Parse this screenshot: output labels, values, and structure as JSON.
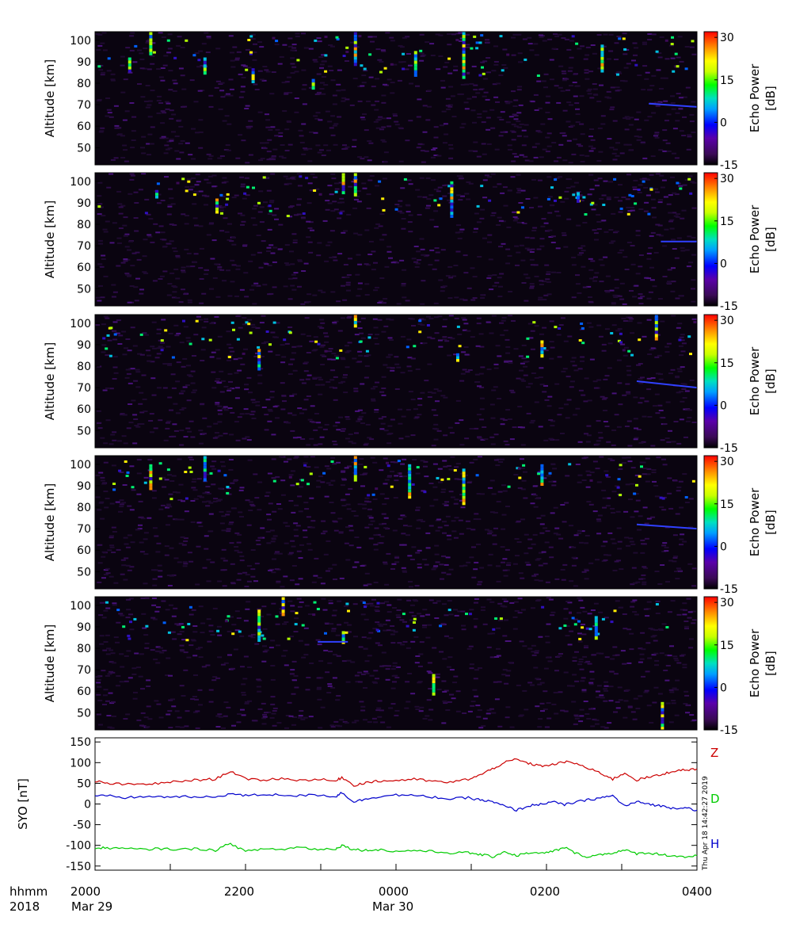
{
  "chart_data": [
    {
      "type": "heatmap",
      "ylabel": "Altitude [km]",
      "ylim": [
        42,
        104
      ],
      "yticks": [
        50,
        60,
        70,
        80,
        90,
        100
      ],
      "colorbar": {
        "label_line1": "Echo Power",
        "label_line2": "[dB]",
        "ticks": [
          30,
          15,
          0,
          -15
        ],
        "range": [
          -15,
          32
        ]
      },
      "streaks": [
        [
          0.055,
          85,
          92
        ],
        [
          0.09,
          93,
          104
        ],
        [
          0.18,
          84,
          92
        ],
        [
          0.26,
          80,
          87
        ],
        [
          0.36,
          77,
          82
        ],
        [
          0.43,
          88,
          104
        ],
        [
          0.53,
          83,
          95
        ],
        [
          0.61,
          82,
          104
        ],
        [
          0.84,
          85,
          98
        ]
      ],
      "meteor_trail": {
        "x": [
          0.92,
          1.0
        ],
        "y": [
          70.5,
          69
        ]
      }
    },
    {
      "type": "heatmap",
      "ylabel": "Altitude [km]",
      "ylim": [
        42,
        104
      ],
      "yticks": [
        50,
        60,
        70,
        80,
        90,
        100
      ],
      "colorbar": {
        "label_line1": "Echo Power",
        "label_line2": "[dB]",
        "ticks": [
          30,
          15,
          0,
          -15
        ],
        "range": [
          -15,
          32
        ]
      },
      "streaks": [
        [
          0.2,
          85,
          92
        ],
        [
          0.41,
          94,
          104
        ],
        [
          0.43,
          93,
          104
        ],
        [
          0.59,
          83,
          100
        ],
        [
          0.8,
          90,
          95
        ],
        [
          0.1,
          92,
          96
        ]
      ],
      "meteor_trail": {
        "x": [
          0.94,
          1.0
        ],
        "y": [
          72,
          72
        ]
      }
    },
    {
      "type": "heatmap",
      "ylabel": "Altitude [km]",
      "ylim": [
        42,
        104
      ],
      "yticks": [
        50,
        60,
        70,
        80,
        90,
        100
      ],
      "colorbar": {
        "label_line1": "Echo Power",
        "label_line2": "[dB]",
        "ticks": [
          30,
          15,
          0,
          -15
        ],
        "range": [
          -15,
          32
        ]
      },
      "streaks": [
        [
          0.27,
          78,
          88
        ],
        [
          0.43,
          98,
          104
        ],
        [
          0.6,
          82,
          86
        ],
        [
          0.74,
          84,
          92
        ],
        [
          0.93,
          92,
          104
        ]
      ],
      "meteor_trail": {
        "x": [
          0.9,
          1.0
        ],
        "y": [
          73,
          70
        ]
      }
    },
    {
      "type": "heatmap",
      "ylabel": "Altitude [km]",
      "ylim": [
        42,
        104
      ],
      "yticks": [
        50,
        60,
        70,
        80,
        90,
        100
      ],
      "colorbar": {
        "label_line1": "Echo Power",
        "label_line2": "[dB]",
        "ticks": [
          30,
          15,
          0,
          -15
        ],
        "range": [
          -15,
          32
        ]
      },
      "streaks": [
        [
          0.09,
          88,
          100
        ],
        [
          0.18,
          92,
          104
        ],
        [
          0.43,
          92,
          104
        ],
        [
          0.52,
          84,
          100
        ],
        [
          0.61,
          81,
          98
        ],
        [
          0.74,
          90,
          100
        ]
      ],
      "meteor_trail": {
        "x": [
          0.9,
          1.0
        ],
        "y": [
          72,
          70
        ]
      }
    },
    {
      "type": "heatmap",
      "ylabel": "Altitude [km]",
      "ylim": [
        42,
        104
      ],
      "yticks": [
        50,
        60,
        70,
        80,
        90,
        100
      ],
      "colorbar": {
        "label_line1": "Echo Power",
        "label_line2": "[dB]",
        "ticks": [
          30,
          15,
          0,
          -15
        ],
        "range": [
          -15,
          32
        ]
      },
      "streaks": [
        [
          0.27,
          83,
          98
        ],
        [
          0.31,
          95,
          104
        ],
        [
          0.41,
          82,
          88
        ],
        [
          0.83,
          84,
          95
        ],
        [
          0.94,
          42,
          55
        ],
        [
          0.56,
          58,
          68
        ]
      ],
      "meteor_trail": {
        "x": [
          0.37,
          0.42
        ],
        "y": [
          83,
          83
        ]
      }
    },
    {
      "type": "line",
      "ylabel": "SYO [nT]",
      "ylim": [
        -160,
        160
      ],
      "yticks": [
        150,
        100,
        50,
        0,
        -50,
        -100,
        -150
      ],
      "x": [
        0,
        0.02,
        0.05,
        0.08,
        0.11,
        0.14,
        0.17,
        0.2,
        0.225,
        0.25,
        0.28,
        0.31,
        0.34,
        0.37,
        0.4,
        0.41,
        0.43,
        0.45,
        0.47,
        0.5,
        0.53,
        0.56,
        0.59,
        0.62,
        0.64,
        0.66,
        0.68,
        0.7,
        0.72,
        0.74,
        0.76,
        0.78,
        0.8,
        0.82,
        0.84,
        0.86,
        0.88,
        0.9,
        0.92,
        0.94,
        0.96,
        0.98,
        1.0
      ],
      "series": [
        {
          "name": "Z",
          "color": "#cc0000",
          "values": [
            55,
            50,
            47,
            48,
            50,
            55,
            58,
            60,
            80,
            60,
            58,
            62,
            57,
            60,
            55,
            65,
            45,
            52,
            55,
            57,
            60,
            55,
            52,
            60,
            70,
            85,
            100,
            108,
            98,
            92,
            95,
            102,
            98,
            85,
            75,
            60,
            75,
            58,
            65,
            70,
            80,
            82,
            85
          ]
        },
        {
          "name": "D",
          "color": "#00cc00",
          "values": [
            -108,
            -106,
            -108,
            -110,
            -108,
            -110,
            -108,
            -112,
            -95,
            -115,
            -108,
            -110,
            -104,
            -110,
            -108,
            -100,
            -110,
            -112,
            -110,
            -115,
            -112,
            -115,
            -118,
            -118,
            -122,
            -128,
            -115,
            -125,
            -118,
            -120,
            -115,
            -105,
            -120,
            -128,
            -122,
            -118,
            -112,
            -120,
            -118,
            -122,
            -125,
            -128,
            -125
          ]
        },
        {
          "name": "H",
          "color": "#0000cc",
          "values": [
            18,
            20,
            15,
            18,
            17,
            18,
            16,
            17,
            25,
            20,
            23,
            22,
            20,
            22,
            18,
            28,
            5,
            12,
            18,
            22,
            20,
            17,
            12,
            15,
            10,
            5,
            -5,
            -15,
            -5,
            0,
            5,
            -2,
            5,
            10,
            15,
            20,
            -5,
            5,
            0,
            -5,
            -10,
            -8,
            -15
          ]
        }
      ]
    }
  ],
  "time_axis": {
    "row1_label": "hhmm",
    "row2_label": "2018",
    "tick_labels": [
      "2000",
      "2200",
      "0000",
      "0200",
      "0400"
    ],
    "date_labels": [
      "Mar 29",
      "Mar 30"
    ]
  },
  "timestamp": "Thu Apr 18 14:42:27 2019"
}
